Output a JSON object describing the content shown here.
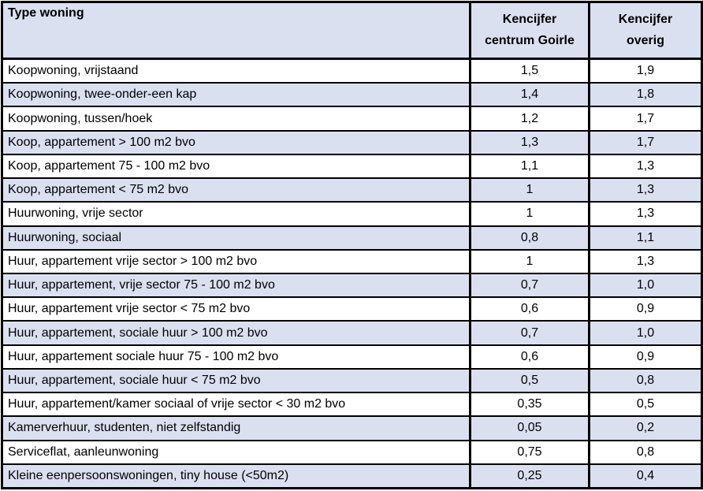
{
  "colors": {
    "header_bg": "#dbe0f1",
    "row_alt_bg": "#dbe0f1",
    "row_bg": "#ffffff",
    "border": "#000000",
    "text": "#000000"
  },
  "table": {
    "header": {
      "type_woning": "Type woning",
      "col2_line1": "Kencijfer",
      "col2_line2": "centrum Goirle",
      "col3_line1": "Kencijfer",
      "col3_line2": "overig"
    },
    "rows": [
      {
        "type": "Koopwoning, vrijstaand",
        "centrum": "1,5",
        "overig": "1,9"
      },
      {
        "type": "Koopwoning, twee-onder-een kap",
        "centrum": "1,4",
        "overig": "1,8"
      },
      {
        "type": "Koopwoning, tussen/hoek",
        "centrum": "1,2",
        "overig": "1,7"
      },
      {
        "type": "Koop, appartement > 100 m2 bvo",
        "centrum": "1,3",
        "overig": "1,7"
      },
      {
        "type": "Koop, appartement 75 - 100 m2 bvo",
        "centrum": "1,1",
        "overig": "1,3"
      },
      {
        "type": "Koop, appartement < 75 m2 bvo",
        "centrum": "1",
        "overig": "1,3"
      },
      {
        "type": "Huurwoning, vrije sector",
        "centrum": "1",
        "overig": "1,3"
      },
      {
        "type": "Huurwoning, sociaal",
        "centrum": "0,8",
        "overig": "1,1"
      },
      {
        "type": "Huur, appartement vrije sector > 100 m2 bvo",
        "centrum": "1",
        "overig": "1,3"
      },
      {
        "type": "Huur, appartement, vrije sector 75 - 100 m2 bvo",
        "centrum": "0,7",
        "overig": "1,0"
      },
      {
        "type": "Huur, appartement vrije sector < 75 m2 bvo",
        "centrum": "0,6",
        "overig": "0,9"
      },
      {
        "type": "Huur, appartement, sociale huur > 100 m2 bvo",
        "centrum": "0,7",
        "overig": "1,0"
      },
      {
        "type": "Huur, appartement sociale huur 75 - 100 m2 bvo",
        "centrum": "0,6",
        "overig": "0,9"
      },
      {
        "type": "Huur, appartement, sociale huur < 75 m2 bvo",
        "centrum": "0,5",
        "overig": "0,8"
      },
      {
        "type": "Huur, appartement/kamer sociaal of vrije sector < 30 m2 bvo",
        "centrum": "0,35",
        "overig": "0,5"
      },
      {
        "type": "Kamerverhuur, studenten, niet zelfstandig",
        "centrum": "0,05",
        "overig": "0,2"
      },
      {
        "type": "Serviceflat, aanleunwoning",
        "centrum": "0,75",
        "overig": "0,8"
      },
      {
        "type": "Kleine eenpersoonswoningen, tiny house (<50m2)",
        "centrum": "0,25",
        "overig": "0,4"
      }
    ]
  }
}
